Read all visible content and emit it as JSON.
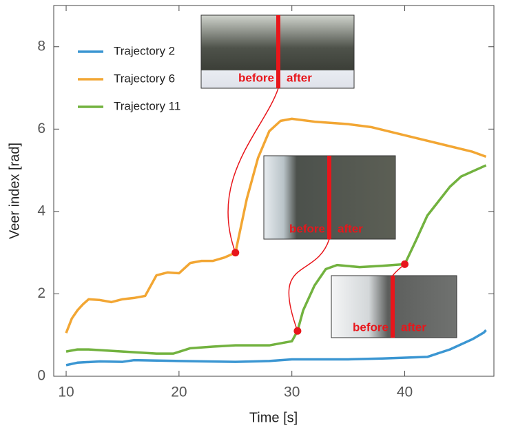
{
  "chart_data": {
    "type": "line",
    "x_label": "Time [s]",
    "y_label": "Veer index [rad]",
    "xlim": [
      8.9,
      47.9
    ],
    "ylim": [
      0,
      9.0
    ],
    "xticks": [
      10,
      20,
      30,
      40
    ],
    "yticks": [
      0,
      2,
      4,
      6,
      8
    ],
    "legend": "upper left",
    "series": [
      {
        "name": "Trajectory 2",
        "color": "#3b96d2",
        "x": [
          10,
          11,
          13,
          15,
          16,
          20,
          25,
          28,
          30,
          35,
          38,
          42,
          44,
          46,
          47,
          47.2
        ],
        "values": [
          0.27,
          0.33,
          0.36,
          0.35,
          0.39,
          0.37,
          0.35,
          0.37,
          0.41,
          0.41,
          0.43,
          0.47,
          0.65,
          0.9,
          1.06,
          1.12
        ]
      },
      {
        "name": "Trajectory 6",
        "color": "#f2a633",
        "x": [
          10,
          10.5,
          11,
          11.5,
          12,
          13,
          14,
          15,
          16,
          17,
          18,
          19,
          20,
          21,
          22,
          23,
          24,
          25,
          26,
          27,
          28,
          29,
          30,
          32,
          35,
          37,
          40,
          43,
          46,
          47.2
        ],
        "values": [
          1.05,
          1.4,
          1.6,
          1.75,
          1.87,
          1.85,
          1.8,
          1.87,
          1.9,
          1.95,
          2.45,
          2.52,
          2.5,
          2.75,
          2.8,
          2.8,
          2.88,
          3.0,
          4.3,
          5.3,
          5.95,
          6.2,
          6.25,
          6.18,
          6.12,
          6.05,
          5.85,
          5.65,
          5.45,
          5.33
        ]
      },
      {
        "name": "Trajectory 11",
        "color": "#72b23f",
        "x": [
          10,
          11,
          12,
          15,
          18,
          19.5,
          21,
          23,
          25,
          28,
          30,
          30.5,
          31,
          32,
          33,
          34,
          36,
          38,
          40,
          41,
          42,
          44,
          45,
          47.2
        ],
        "values": [
          0.6,
          0.65,
          0.65,
          0.6,
          0.55,
          0.55,
          0.68,
          0.72,
          0.75,
          0.75,
          0.85,
          1.1,
          1.6,
          2.2,
          2.6,
          2.7,
          2.65,
          2.68,
          2.72,
          3.3,
          3.9,
          4.6,
          4.85,
          5.12
        ]
      }
    ],
    "markers": {
      "color": "#e8161b",
      "x": [
        25,
        30.5,
        40
      ],
      "values": [
        3.0,
        1.1,
        2.72
      ]
    },
    "insets": [
      {
        "before": "before",
        "after": "after"
      },
      {
        "before": "before",
        "after": "after"
      },
      {
        "before": "before",
        "after": "after"
      }
    ]
  }
}
